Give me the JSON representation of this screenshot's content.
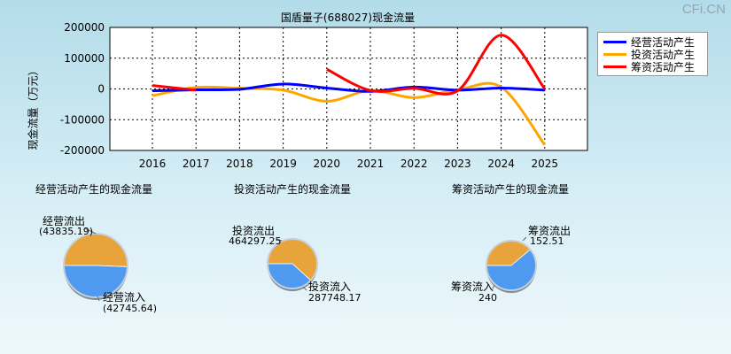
{
  "watermark": "CFi.CN",
  "chart_data": [
    {
      "type": "line",
      "title": "国盾量子(688027)现金流量",
      "ylabel": "现金流量（万元）",
      "x": [
        "2016",
        "2017",
        "2018",
        "2019",
        "2020",
        "2021",
        "2022",
        "2023",
        "2024",
        "2025"
      ],
      "ylim": [
        -200000,
        200000
      ],
      "yticks": [
        "200000",
        "100000",
        "0",
        "-100000",
        "-200000"
      ],
      "ytick_values": [
        200000,
        100000,
        0,
        -100000,
        -200000
      ],
      "grid": true,
      "legend_position": "right",
      "series": [
        {
          "name": "经营活动产生",
          "color": "#0000ff",
          "values": [
            -6000,
            -3000,
            -1000,
            16000,
            3000,
            -8000,
            6000,
            -4000,
            3000,
            -4000
          ]
        },
        {
          "name": "投资活动产生",
          "color": "#ffa500",
          "values": [
            -22000,
            5000,
            2000,
            -4000,
            -40000,
            -5000,
            -28000,
            -3000,
            6000,
            -182000
          ]
        },
        {
          "name": "筹资活动产生",
          "color": "#ff0000",
          "values": [
            11000,
            -4000,
            null,
            null,
            64000,
            -5000,
            2000,
            -6000,
            175000,
            0
          ]
        }
      ]
    },
    {
      "type": "pie",
      "title": "经营活动产生的现金流量",
      "slices": [
        {
          "label": "经营流出",
          "value_text": "(43835.19)",
          "value": 43835.19,
          "color": "#e8a43a"
        },
        {
          "label": "经营流入",
          "value_text": "(42745.64)",
          "value": 42745.64,
          "color": "#4d9af0"
        }
      ]
    },
    {
      "type": "pie",
      "title": "投资活动产生的现金流量",
      "slices": [
        {
          "label": "投资流出",
          "value_text": "464297.25",
          "value": 464297.25,
          "color": "#e8a43a"
        },
        {
          "label": "投资流入",
          "value_text": "287748.17",
          "value": 287748.17,
          "color": "#4d9af0"
        }
      ]
    },
    {
      "type": "pie",
      "title": "筹资活动产生的现金流量",
      "slices": [
        {
          "label": "筹资流出",
          "value_text": "152.51",
          "value": 152.51,
          "color": "#e8a43a"
        },
        {
          "label": "筹资流入",
          "value_text": "240",
          "value": 240,
          "color": "#4d9af0"
        }
      ]
    }
  ]
}
